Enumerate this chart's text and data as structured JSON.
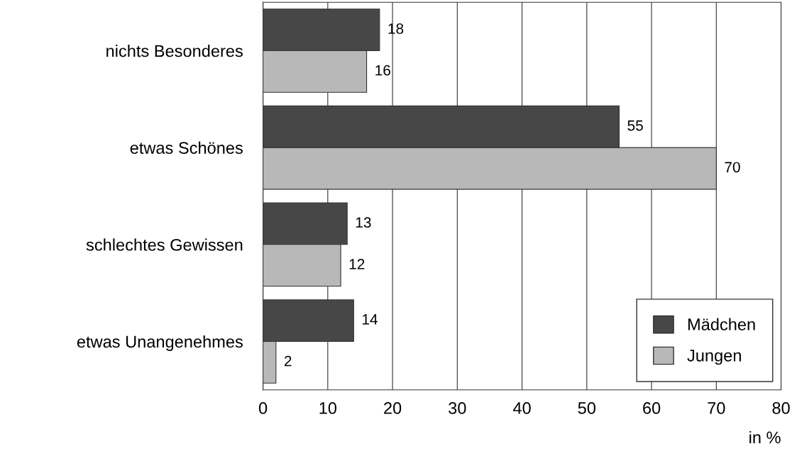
{
  "chart_data": {
    "type": "bar",
    "orientation": "horizontal",
    "categories": [
      "nichts Besonderes",
      "etwas Schönes",
      "schlechtes Gewissen",
      "etwas Unangenehmes"
    ],
    "series": [
      {
        "name": "Mädchen",
        "color": "#474747",
        "values": [
          18,
          55,
          13,
          14
        ]
      },
      {
        "name": "Jungen",
        "color": "#b8b8b8",
        "values": [
          16,
          70,
          12,
          2
        ]
      }
    ],
    "xlim": [
      0,
      80
    ],
    "xticks": [
      0,
      10,
      20,
      30,
      40,
      50,
      60,
      70,
      80
    ],
    "xlabel": "in %",
    "grid": "x",
    "legend": "bottom right",
    "data_labels": true
  }
}
